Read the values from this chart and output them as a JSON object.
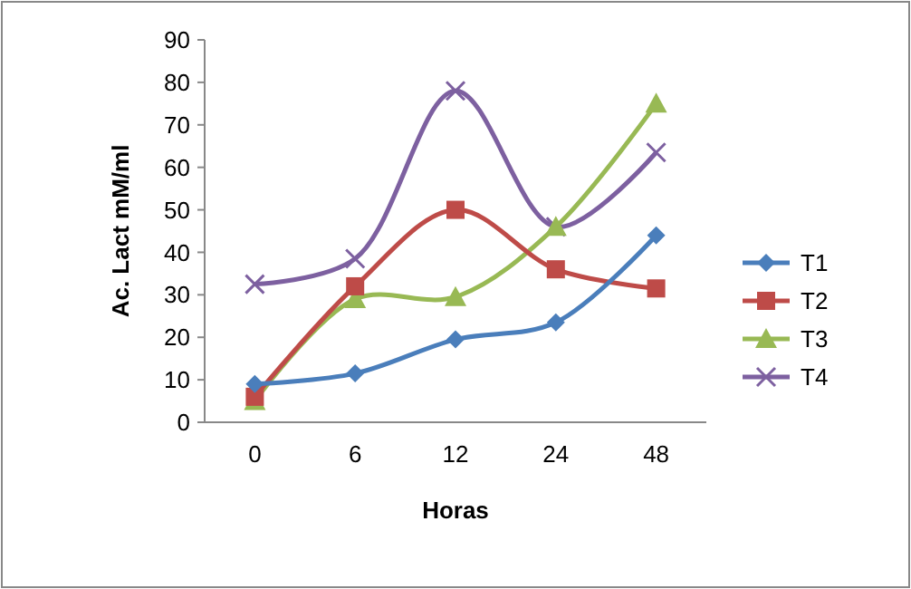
{
  "chart_data": {
    "type": "line",
    "xlabel": "Horas",
    "ylabel": "Ac. Lact mM/ml",
    "categories": [
      "0",
      "6",
      "12",
      "24",
      "48"
    ],
    "ylim": [
      0,
      90
    ],
    "yticks": [
      0,
      10,
      20,
      30,
      40,
      50,
      60,
      70,
      80,
      90
    ],
    "grid": false,
    "legend": "right",
    "series": [
      {
        "name": "T1",
        "color": "#4a7ebb",
        "marker": "diamond",
        "values": [
          9,
          11.5,
          19.5,
          23.5,
          44
        ]
      },
      {
        "name": "T2",
        "color": "#be4b48",
        "marker": "square",
        "values": [
          6,
          32,
          50,
          36,
          31.5
        ]
      },
      {
        "name": "T3",
        "color": "#98b954",
        "marker": "triangle",
        "values": [
          5,
          29,
          29.5,
          46,
          75
        ]
      },
      {
        "name": "T4",
        "color": "#7d60a0",
        "marker": "cross",
        "values": [
          32.5,
          38.5,
          78,
          46,
          63.5
        ]
      }
    ]
  }
}
